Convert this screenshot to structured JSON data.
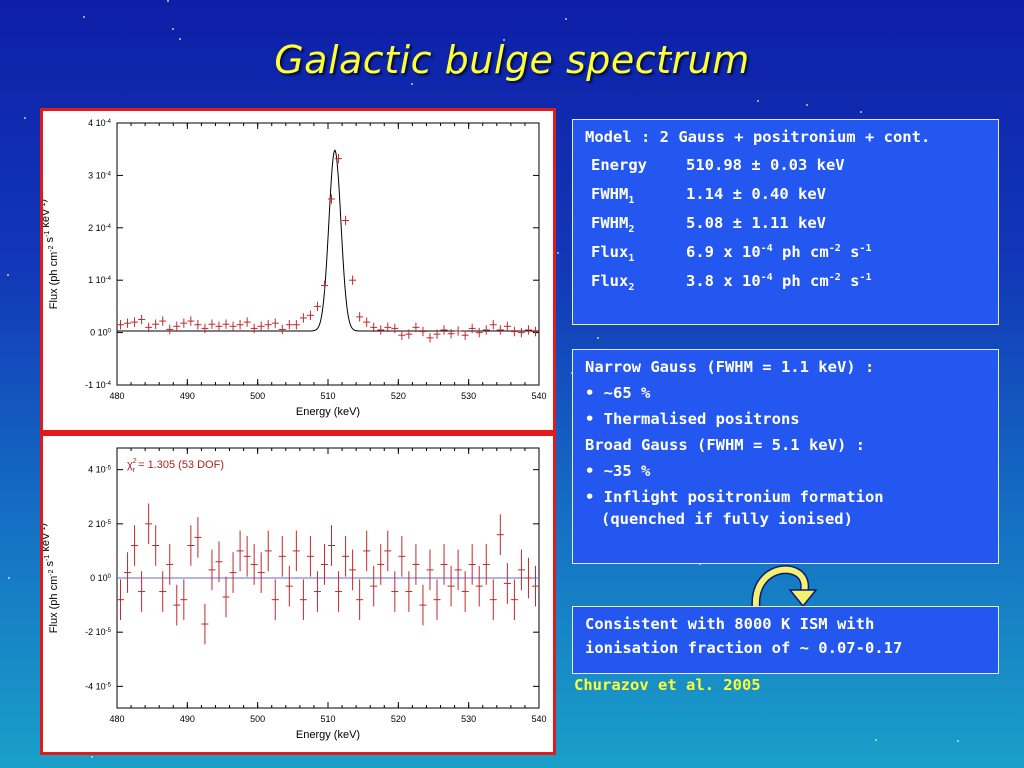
{
  "slide": {
    "title": "Galactic bulge spectrum",
    "citation": "Churazov et al. 2005"
  },
  "model_box": {
    "header": "Model : 2 Gauss + positronium + cont.",
    "params": [
      {
        "name": "Energy",
        "sub": "",
        "value": "510.98 ± 0.03 keV"
      },
      {
        "name": "FWHM",
        "sub": "1",
        "value": "1.14 ± 0.40 keV"
      },
      {
        "name": "FWHM",
        "sub": "2",
        "value": "5.08 ± 1.11 keV"
      },
      {
        "name": "Flux",
        "sub": "1",
        "value": "6.9 x 10-4 ph cm-2 s-1"
      },
      {
        "name": "Flux",
        "sub": "2",
        "value": "3.8 x 10-4 ph cm-2 s-1"
      }
    ]
  },
  "gauss_box": {
    "lines": [
      "Narrow Gauss (FWHM = 1.1 keV) :",
      "• ~65 %",
      "• Thermalised positrons",
      "Broad Gauss (FWHM = 5.1 keV) :",
      "• ~35 %",
      "• Inflight positronium formation",
      "(quenched if fully ionised)"
    ]
  },
  "ism_box": {
    "lines": [
      "Consistent with 8000 K ISM with",
      "ionisation fraction of ~ 0.07-0.17"
    ]
  },
  "colors": {
    "title": "#ffff33",
    "box_fill": "#2457f0",
    "frame": "#e21a1a",
    "points": "#c0282d",
    "model_line": "#000000",
    "zero_line": "#6a6ad8"
  },
  "chart_data": [
    {
      "type": "scatter",
      "title": "",
      "xlabel": "Energy (keV)",
      "ylabel": "Flux (ph cm-2 s-1 keV-1)",
      "xlim": [
        480,
        540
      ],
      "ylim": [
        -0.0001,
        0.0004
      ],
      "x_ticks": [
        "480",
        "490",
        "500",
        "510",
        "520",
        "530",
        "540"
      ],
      "y_ticks": [
        "-1 10-4",
        "0 100",
        "1 10-4",
        "2 10-4",
        "3 10-4",
        "4 10-4"
      ],
      "model_line": {
        "continuum": 3e-06,
        "peak_energy": 510.98,
        "peak": 0.000345,
        "sigma": 0.85
      },
      "series": [
        {
          "x": [
            480.5,
            481.5,
            482.5,
            483.5,
            484.5,
            485.5,
            486.5,
            487.5,
            488.5,
            489.5,
            490.5,
            491.5,
            492.5,
            493.5,
            494.5,
            495.5,
            496.5,
            497.5,
            498.5,
            499.5,
            500.5,
            501.5,
            502.5,
            503.5,
            504.5,
            505.5,
            506.5,
            507.5,
            508.5,
            509.5,
            510.5,
            511.5,
            512.5,
            513.5,
            514.5,
            515.5,
            516.5,
            517.5,
            518.5,
            519.5,
            520.5,
            521.5,
            522.5,
            523.5,
            524.5,
            525.5,
            526.5,
            527.5,
            528.5,
            529.5,
            530.5,
            531.5,
            532.5,
            533.5,
            534.5,
            535.5,
            536.5,
            537.5,
            538.5,
            539.5
          ],
          "y": [
            1.5e-05,
            1.8e-05,
            2e-05,
            2.5e-05,
            1e-05,
            1.6e-05,
            2.2e-05,
            6e-06,
            1.2e-05,
            1.8e-05,
            2.2e-05,
            1.5e-05,
            8e-06,
            1.6e-05,
            1.2e-05,
            1.6e-05,
            1.2e-05,
            1.5e-05,
            2e-05,
            8e-06,
            1.2e-05,
            1.5e-05,
            1.8e-05,
            6e-06,
            1.5e-05,
            1.5e-05,
            2.8e-05,
            3.3e-05,
            5e-05,
            9e-05,
            0.000255,
            0.000332,
            0.000214,
            0.0001,
            3e-05,
            2e-05,
            1e-05,
            5e-06,
            1e-05,
            8e-06,
            -5e-06,
            -3e-06,
            1e-05,
            2e-06,
            -1e-05,
            -3e-06,
            5e-06,
            -2e-06,
            3e-06,
            -5e-06,
            8e-06,
            0.0,
            5e-06,
            1.5e-05,
            5e-06,
            1.2e-05,
            2e-06,
            0.0,
            5e-06,
            2e-06
          ],
          "err": 9e-06
        }
      ]
    },
    {
      "type": "scatter",
      "title": "",
      "annotation": "χ2r = 1.305 (53 DOF)",
      "xlabel": "Energy (keV)",
      "ylabel": "Flux (ph cm-2 s-1 keV-1)",
      "xlim": [
        480,
        540
      ],
      "ylim": [
        -4.8e-05,
        4.8e-05
      ],
      "x_ticks": [
        "480",
        "490",
        "500",
        "510",
        "520",
        "530",
        "540"
      ],
      "y_ticks": [
        "-4 10-5",
        "-2 10-5",
        "0 100",
        "2 10-5",
        "4 10-5"
      ],
      "zero_line": 0,
      "series": [
        {
          "x": [
            480.5,
            481.5,
            482.5,
            483.5,
            484.5,
            485.5,
            486.5,
            487.5,
            488.5,
            489.5,
            490.5,
            491.5,
            492.5,
            493.5,
            494.5,
            495.5,
            496.5,
            497.5,
            498.5,
            499.5,
            500.5,
            501.5,
            502.5,
            503.5,
            504.5,
            505.5,
            506.5,
            507.5,
            508.5,
            509.5,
            510.5,
            511.5,
            512.5,
            513.5,
            514.5,
            515.5,
            516.5,
            517.5,
            518.5,
            519.5,
            520.5,
            521.5,
            522.5,
            523.5,
            524.5,
            525.5,
            526.5,
            527.5,
            528.5,
            529.5,
            530.5,
            531.5,
            532.5,
            533.5,
            534.5,
            535.5,
            536.5,
            537.5,
            538.5,
            539.5
          ],
          "y": [
            -8e-06,
            2e-06,
            1.2e-05,
            -5e-06,
            2e-05,
            1.2e-05,
            -5e-06,
            5e-06,
            -1e-05,
            -8e-06,
            1.2e-05,
            1.5e-05,
            -1.7e-05,
            3e-06,
            6e-06,
            -7e-06,
            2e-06,
            1e-05,
            8e-06,
            5e-06,
            2e-06,
            1e-05,
            -8e-06,
            8e-06,
            -3e-06,
            1e-05,
            -8e-06,
            8e-06,
            -5e-06,
            5e-06,
            1.2e-05,
            -5e-06,
            8e-06,
            3e-06,
            -8e-06,
            1e-05,
            -3e-06,
            5e-06,
            1e-05,
            -5e-06,
            8e-06,
            -5e-06,
            5e-06,
            -1e-05,
            3e-06,
            -8e-06,
            5e-06,
            -3e-06,
            3e-06,
            -5e-06,
            5e-06,
            -3e-06,
            5e-06,
            -8e-06,
            1.6e-05,
            -2e-06,
            -8e-06,
            3e-06,
            0.0,
            -3e-06
          ],
          "err": 7.5e-06
        }
      ]
    }
  ]
}
